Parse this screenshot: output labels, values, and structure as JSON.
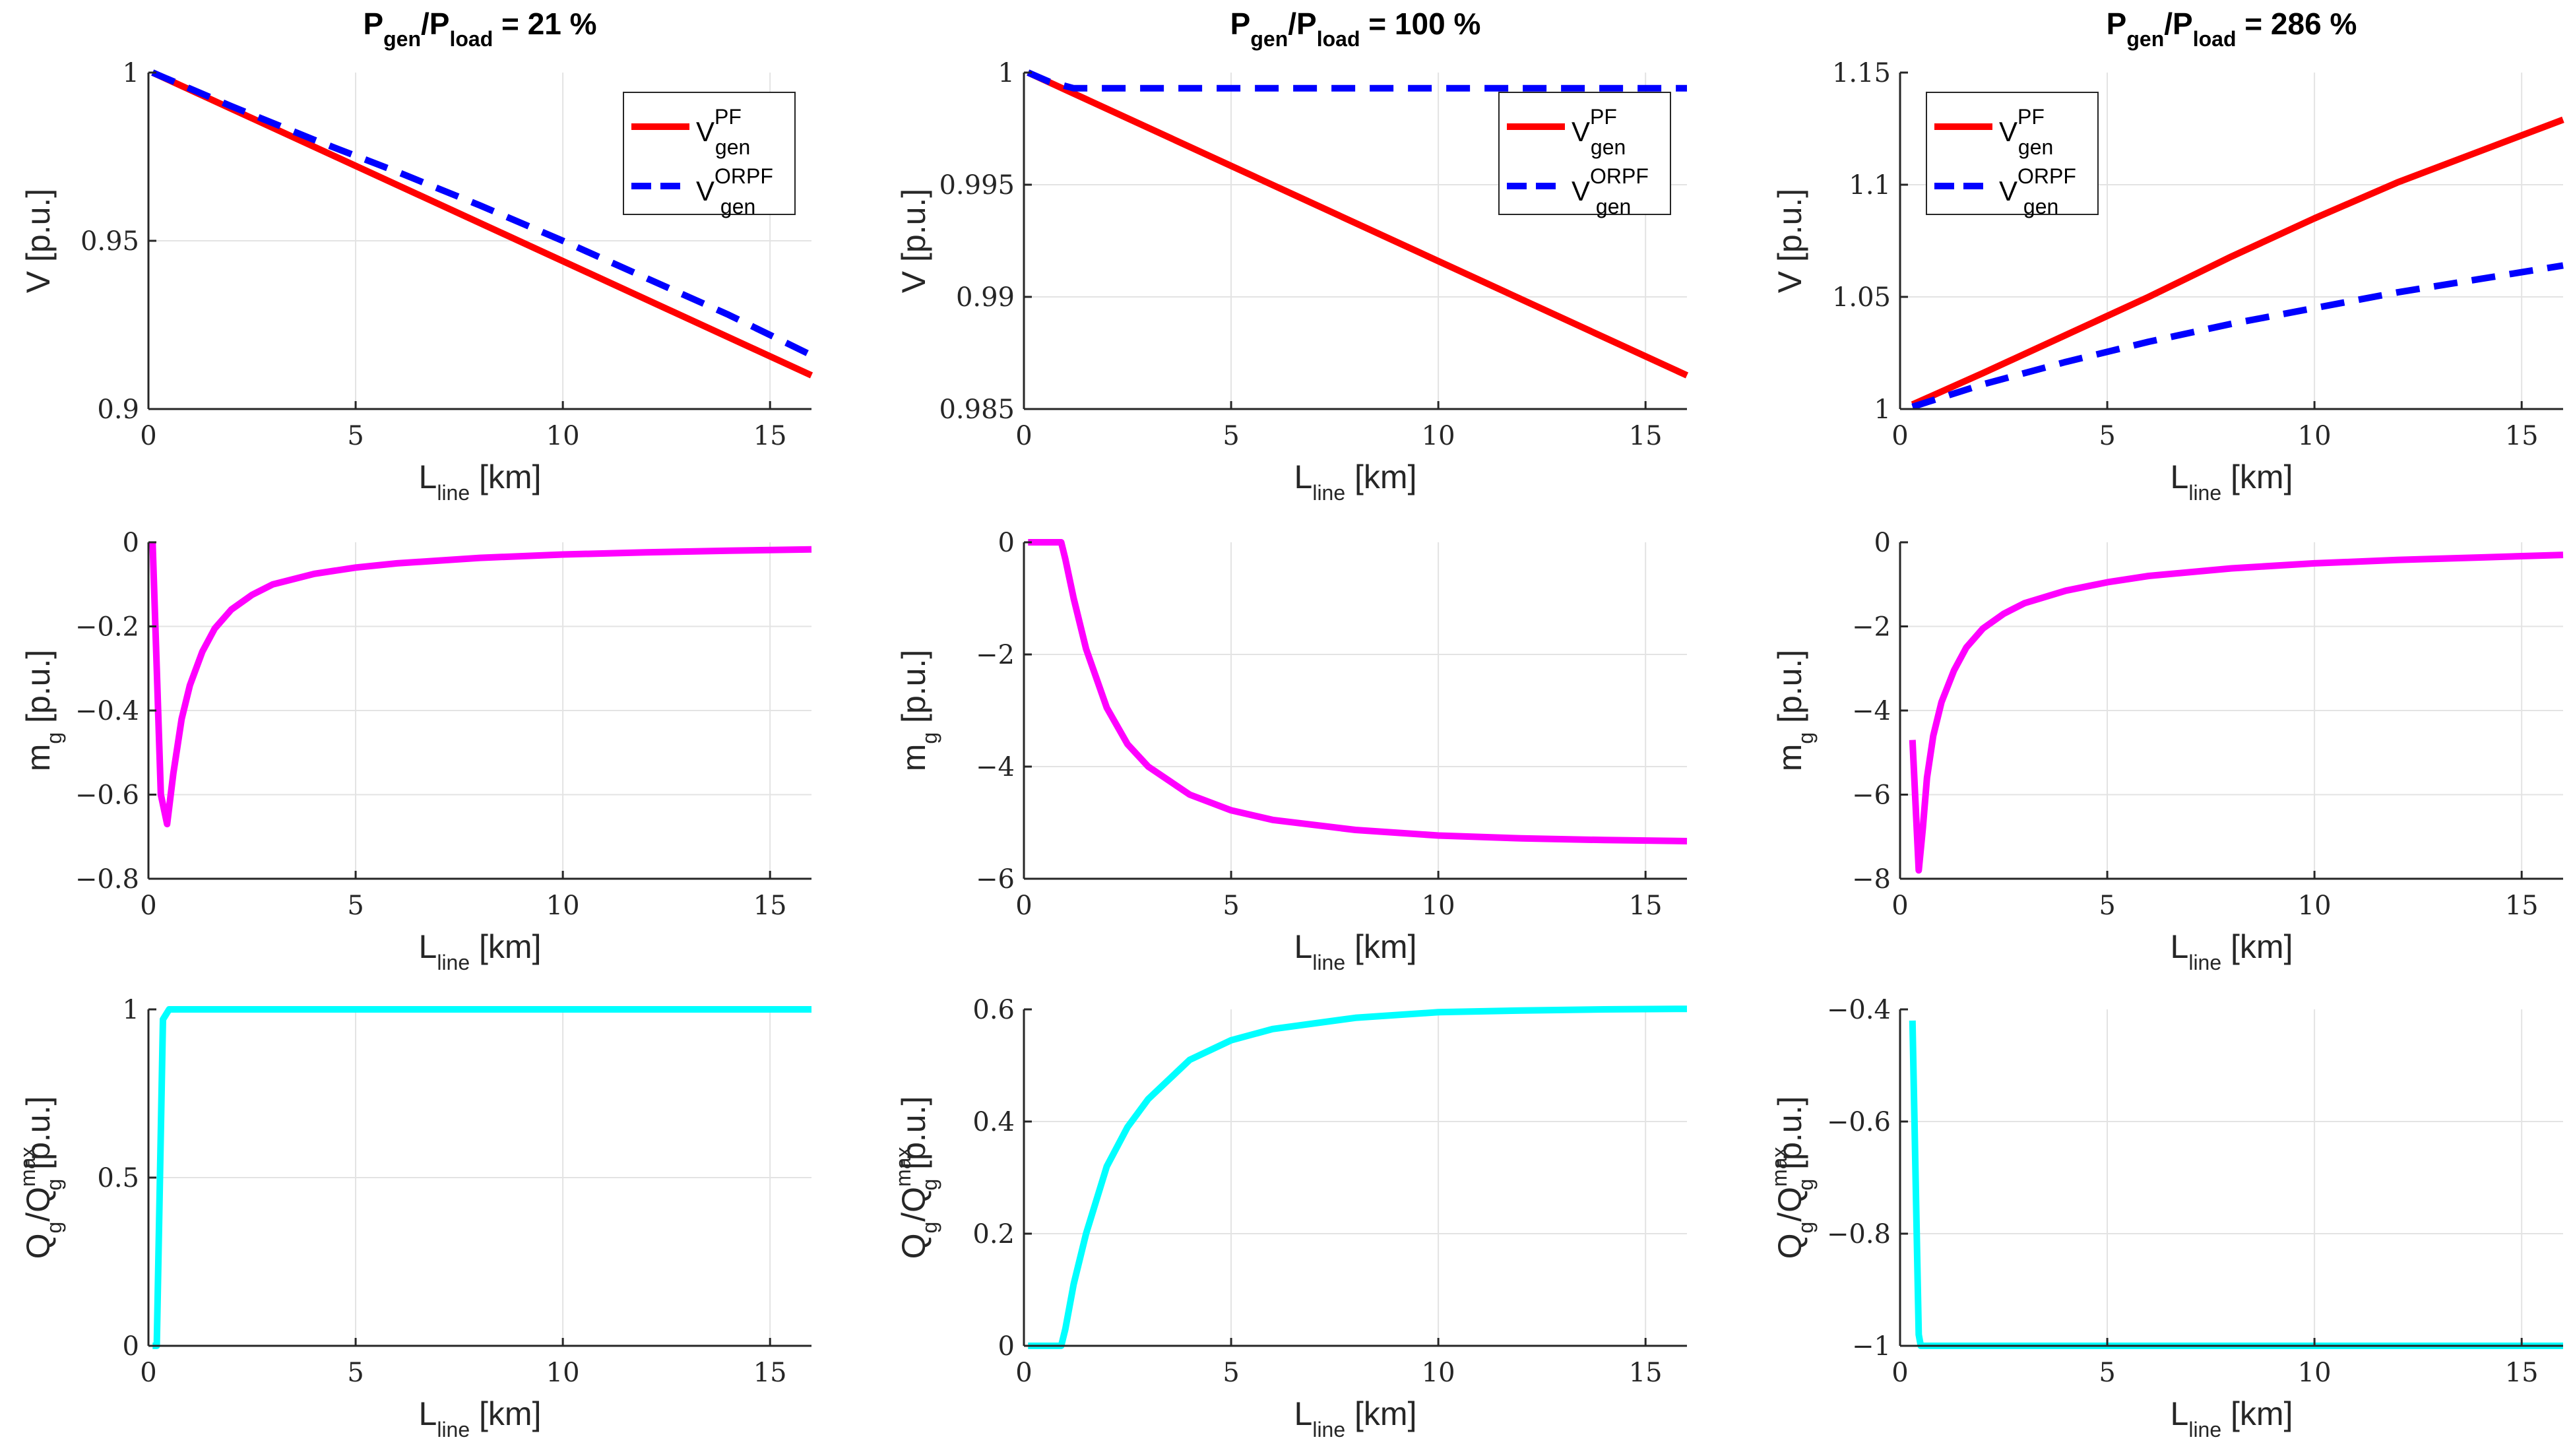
{
  "chart_data": [
    {
      "id": "p11",
      "type": "line",
      "title_main": "P",
      "title_sub1": "gen",
      "title_sep": "/P",
      "title_sub2": "load",
      "title_val": " = 21 %",
      "xlabel_main": "L",
      "xlabel_sub": "line",
      "xlabel_unit": " [km]",
      "ylabel": "V [p.u.]",
      "xlim": [
        0,
        16
      ],
      "ylim": [
        0.9,
        1.0
      ],
      "xticks": [
        0,
        5,
        10,
        15
      ],
      "yticks": [
        0.9,
        0.95,
        1
      ],
      "ytick_labels": [
        "0.9",
        "0.95",
        "1"
      ],
      "legend": {
        "position": "top-right",
        "entries": [
          {
            "main": "V",
            "sup": "PF",
            "sub": "gen"
          },
          {
            "main": "V",
            "sup": "ORPF",
            "sub": "gen"
          }
        ]
      },
      "series": [
        {
          "name": "V_gen^PF",
          "color": "#ff0000",
          "dash": "",
          "x": [
            0.1,
            16
          ],
          "y": [
            1.0,
            0.91
          ]
        },
        {
          "name": "V_gen^ORPF",
          "color": "#0000ff",
          "dash": "dash",
          "x": [
            0.1,
            2,
            4,
            6,
            8,
            10,
            12,
            14,
            16
          ],
          "y": [
            1.0,
            0.99,
            0.98,
            0.9705,
            0.9605,
            0.95,
            0.939,
            0.928,
            0.916
          ]
        }
      ]
    },
    {
      "id": "p12",
      "type": "line",
      "title_main": "P",
      "title_sub1": "gen",
      "title_sep": "/P",
      "title_sub2": "load",
      "title_val": " = 100 %",
      "xlabel_main": "L",
      "xlabel_sub": "line",
      "xlabel_unit": " [km]",
      "ylabel": "V [p.u.]",
      "xlim": [
        0,
        16
      ],
      "ylim": [
        0.985,
        1.0
      ],
      "xticks": [
        0,
        5,
        10,
        15
      ],
      "yticks": [
        0.985,
        0.99,
        0.995,
        1
      ],
      "ytick_labels": [
        "0.985",
        "0.99",
        "0.995",
        "1"
      ],
      "legend": {
        "position": "top-right",
        "entries": [
          {
            "main": "V",
            "sup": "PF",
            "sub": "gen"
          },
          {
            "main": "V",
            "sup": "ORPF",
            "sub": "gen"
          }
        ]
      },
      "series": [
        {
          "name": "V_gen^PF",
          "color": "#ff0000",
          "dash": "",
          "x": [
            0.1,
            16
          ],
          "y": [
            1.0,
            0.9865
          ]
        },
        {
          "name": "V_gen^ORPF",
          "color": "#0000ff",
          "dash": "dash",
          "x": [
            0.1,
            0.6,
            1.2,
            16
          ],
          "y": [
            1.0,
            0.9996,
            0.9993,
            0.9993
          ]
        }
      ]
    },
    {
      "id": "p13",
      "type": "line",
      "title_main": "P",
      "title_sub1": "gen",
      "title_sep": "/P",
      "title_sub2": "load",
      "title_val": " = 286 %",
      "xlabel_main": "L",
      "xlabel_sub": "line",
      "xlabel_unit": " [km]",
      "ylabel": "V [p.u.]",
      "xlim": [
        0,
        16
      ],
      "ylim": [
        1.0,
        1.15
      ],
      "xticks": [
        0,
        5,
        10,
        15
      ],
      "yticks": [
        1,
        1.05,
        1.1,
        1.15
      ],
      "ytick_labels": [
        "1",
        "1.05",
        "1.1",
        "1.15"
      ],
      "legend": {
        "position": "top-left",
        "entries": [
          {
            "main": "V",
            "sup": "PF",
            "sub": "gen"
          },
          {
            "main": "V",
            "sup": "ORPF",
            "sub": "gen"
          }
        ]
      },
      "series": [
        {
          "name": "V_gen^PF",
          "color": "#ff0000",
          "dash": "",
          "x": [
            0.3,
            2,
            4,
            6,
            8,
            10,
            12,
            14,
            16
          ],
          "y": [
            1.002,
            1.016,
            1.033,
            1.05,
            1.068,
            1.085,
            1.101,
            1.115,
            1.129
          ]
        },
        {
          "name": "V_gen^ORPF",
          "color": "#0000ff",
          "dash": "dash",
          "x": [
            0.3,
            2,
            4,
            6,
            8,
            10,
            12,
            14,
            16
          ],
          "y": [
            1.001,
            1.011,
            1.021,
            1.03,
            1.038,
            1.045,
            1.052,
            1.058,
            1.064
          ]
        }
      ]
    },
    {
      "id": "p21",
      "type": "line",
      "xlabel_main": "L",
      "xlabel_sub": "line",
      "xlabel_unit": " [km]",
      "ylabel_main": "m",
      "ylabel_sub": "g",
      "ylabel_unit": " [p.u.]",
      "xlim": [
        0,
        16
      ],
      "ylim": [
        -0.8,
        0
      ],
      "xticks": [
        0,
        5,
        10,
        15
      ],
      "yticks": [
        -0.8,
        -0.6,
        -0.4,
        -0.2,
        0
      ],
      "ytick_labels": [
        "−0.8",
        "−0.6",
        "−0.4",
        "−0.2",
        "0"
      ],
      "series": [
        {
          "name": "m_g",
          "color": "#ff00ff",
          "dash": "",
          "x": [
            0.1,
            0.2,
            0.3,
            0.45,
            0.6,
            0.8,
            1,
            1.3,
            1.6,
            2,
            2.5,
            3,
            4,
            5,
            6,
            8,
            10,
            12,
            14,
            16
          ],
          "y": [
            0,
            -0.3,
            -0.6,
            -0.67,
            -0.55,
            -0.42,
            -0.34,
            -0.26,
            -0.205,
            -0.16,
            -0.125,
            -0.1,
            -0.075,
            -0.06,
            -0.05,
            -0.037,
            -0.029,
            -0.024,
            -0.02,
            -0.017
          ]
        }
      ]
    },
    {
      "id": "p22",
      "type": "line",
      "xlabel_main": "L",
      "xlabel_sub": "line",
      "xlabel_unit": " [km]",
      "ylabel_main": "m",
      "ylabel_sub": "g",
      "ylabel_unit": " [p.u.]",
      "xlim": [
        0,
        16
      ],
      "ylim": [
        -6,
        0
      ],
      "xticks": [
        0,
        5,
        10,
        15
      ],
      "yticks": [
        -6,
        -4,
        -2,
        0
      ],
      "ytick_labels": [
        "−6",
        "−4",
        "−2",
        "0"
      ],
      "series": [
        {
          "name": "m_g",
          "color": "#ff00ff",
          "dash": "",
          "x": [
            0.1,
            0.9,
            1.0,
            1.2,
            1.5,
            2,
            2.5,
            3,
            4,
            5,
            6,
            8,
            10,
            12,
            14,
            16
          ],
          "y": [
            0,
            0,
            -0.3,
            -1.0,
            -1.9,
            -2.95,
            -3.6,
            -4.0,
            -4.5,
            -4.78,
            -4.95,
            -5.13,
            -5.23,
            -5.28,
            -5.31,
            -5.33
          ]
        }
      ]
    },
    {
      "id": "p23",
      "type": "line",
      "xlabel_main": "L",
      "xlabel_sub": "line",
      "xlabel_unit": " [km]",
      "ylabel_main": "m",
      "ylabel_sub": "g",
      "ylabel_unit": " [p.u.]",
      "xlim": [
        0,
        16
      ],
      "ylim": [
        -8,
        0
      ],
      "xticks": [
        0,
        5,
        10,
        15
      ],
      "yticks": [
        -8,
        -6,
        -4,
        -2,
        0
      ],
      "ytick_labels": [
        "−8",
        "−6",
        "−4",
        "−2",
        "0"
      ],
      "series": [
        {
          "name": "m_g",
          "color": "#ff00ff",
          "dash": "",
          "x": [
            0.3,
            0.45,
            0.55,
            0.65,
            0.8,
            1,
            1.3,
            1.6,
            2,
            2.5,
            3,
            4,
            5,
            6,
            8,
            10,
            12,
            14,
            16
          ],
          "y": [
            -4.7,
            -7.8,
            -6.8,
            -5.6,
            -4.6,
            -3.8,
            -3.05,
            -2.5,
            -2.05,
            -1.7,
            -1.45,
            -1.15,
            -0.95,
            -0.8,
            -0.62,
            -0.5,
            -0.42,
            -0.36,
            -0.3
          ]
        }
      ]
    },
    {
      "id": "p31",
      "type": "line",
      "xlabel_main": "L",
      "xlabel_sub": "line",
      "xlabel_unit": " [km]",
      "ylabel_main": "Q",
      "ylabel_sub": "g",
      "ylabel_sep": "/Q",
      "ylabel_sup2": "max",
      "ylabel_sub2": "g",
      "ylabel_unit": " [p.u.]",
      "xlim": [
        0,
        16
      ],
      "ylim": [
        0,
        1
      ],
      "xticks": [
        0,
        5,
        10,
        15
      ],
      "yticks": [
        0,
        0.5,
        1
      ],
      "ytick_labels": [
        "0",
        "0.5",
        "1"
      ],
      "series": [
        {
          "name": "Qg/Qgmax",
          "color": "#00ffff",
          "dash": "",
          "x": [
            0.1,
            0.2,
            0.35,
            0.5,
            0.6,
            16
          ],
          "y": [
            0,
            0,
            0.97,
            1,
            1,
            1
          ]
        }
      ]
    },
    {
      "id": "p32",
      "type": "line",
      "xlabel_main": "L",
      "xlabel_sub": "line",
      "xlabel_unit": " [km]",
      "ylabel_main": "Q",
      "ylabel_sub": "g",
      "ylabel_sep": "/Q",
      "ylabel_sup2": "max",
      "ylabel_sub2": "g",
      "ylabel_unit": " [p.u.]",
      "xlim": [
        0,
        16
      ],
      "ylim": [
        0,
        0.6
      ],
      "xticks": [
        0,
        5,
        10,
        15
      ],
      "yticks": [
        0,
        0.2,
        0.4,
        0.6
      ],
      "ytick_labels": [
        "0",
        "0.2",
        "0.4",
        "0.6"
      ],
      "series": [
        {
          "name": "Qg/Qgmax",
          "color": "#00ffff",
          "dash": "",
          "x": [
            0.1,
            0.9,
            1.0,
            1.2,
            1.5,
            2,
            2.5,
            3,
            4,
            5,
            6,
            8,
            10,
            12,
            14,
            16
          ],
          "y": [
            0,
            0,
            0.03,
            0.11,
            0.2,
            0.32,
            0.39,
            0.44,
            0.51,
            0.545,
            0.565,
            0.585,
            0.595,
            0.598,
            0.6,
            0.601
          ]
        }
      ]
    },
    {
      "id": "p33",
      "type": "line",
      "xlabel_main": "L",
      "xlabel_sub": "line",
      "xlabel_unit": " [km]",
      "ylabel_main": "Q",
      "ylabel_sub": "g",
      "ylabel_sep": "/Q",
      "ylabel_sup2": "max",
      "ylabel_sub2": "g",
      "ylabel_unit": " [p.u.]",
      "xlim": [
        0,
        16
      ],
      "ylim": [
        -1,
        -0.4
      ],
      "xticks": [
        0,
        5,
        10,
        15
      ],
      "yticks": [
        -1,
        -0.8,
        -0.6,
        -0.4
      ],
      "ytick_labels": [
        "−1",
        "−0.8",
        "−0.6",
        "−0.4"
      ],
      "series": [
        {
          "name": "Qg/Qgmax",
          "color": "#00ffff",
          "dash": "",
          "x": [
            0.3,
            0.45,
            0.5,
            16
          ],
          "y": [
            -0.42,
            -0.98,
            -1,
            -1
          ]
        }
      ]
    }
  ]
}
